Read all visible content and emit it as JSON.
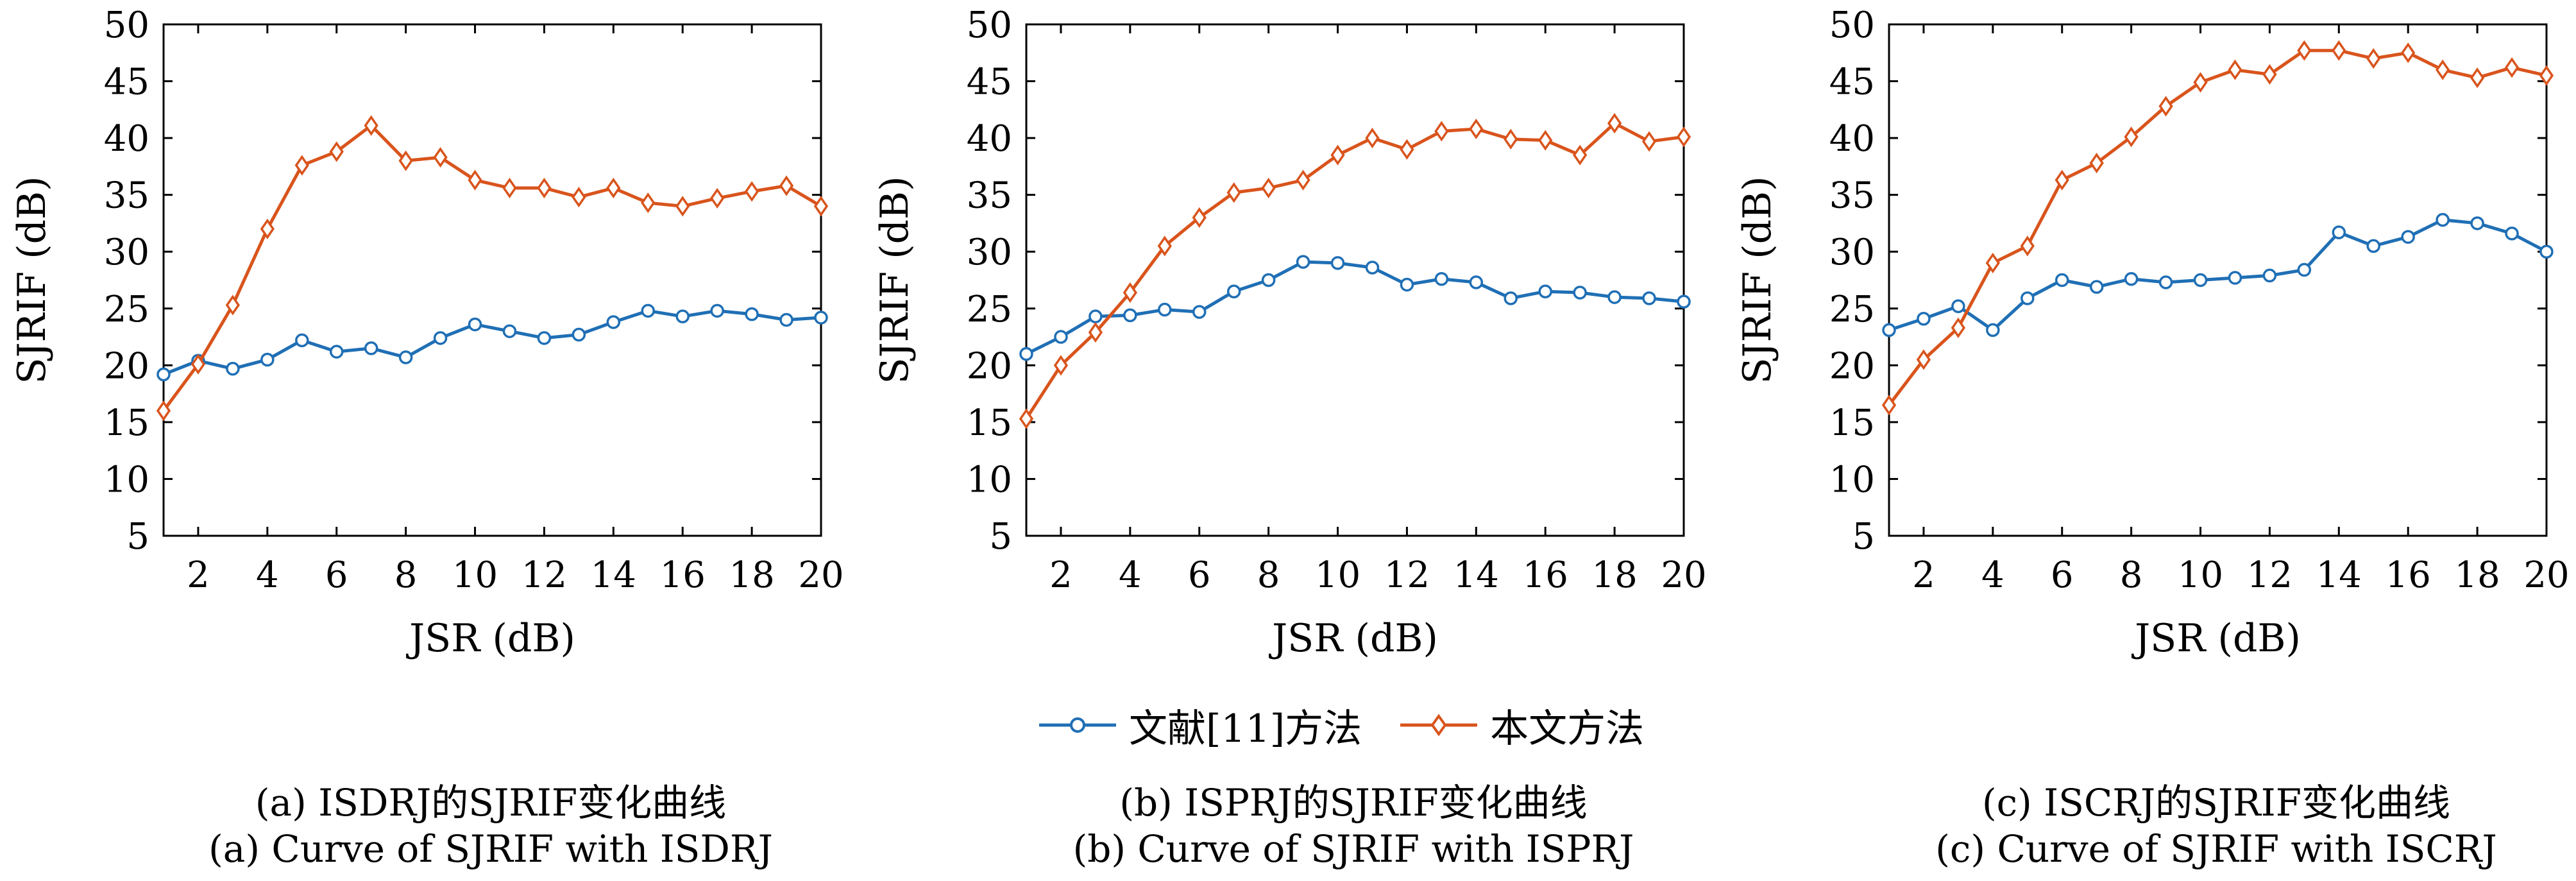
{
  "chart_data": [
    {
      "type": "line",
      "xlabel": "JSR (dB)",
      "ylabel": "SJRIF (dB)",
      "xlim": [
        1,
        20
      ],
      "ylim": [
        5,
        50
      ],
      "xticks": [
        "2",
        "4",
        "6",
        "8",
        "10",
        "12",
        "14",
        "16",
        "18",
        "20"
      ],
      "yticks": [
        "5",
        "10",
        "15",
        "20",
        "25",
        "30",
        "35",
        "40",
        "45",
        "50"
      ],
      "x": [
        1,
        2,
        3,
        4,
        5,
        6,
        7,
        8,
        9,
        10,
        11,
        12,
        13,
        14,
        15,
        16,
        17,
        18,
        19,
        20
      ],
      "series": [
        {
          "name": "文献[11]方法",
          "values": [
            19.2,
            20.4,
            19.7,
            20.5,
            22.2,
            21.2,
            21.5,
            20.7,
            22.4,
            23.6,
            23.0,
            22.4,
            22.7,
            23.8,
            24.8,
            24.3,
            24.8,
            24.5,
            24.0,
            24.2
          ]
        },
        {
          "name": "本文方法",
          "values": [
            16.0,
            20.1,
            25.3,
            32.0,
            37.6,
            38.8,
            41.1,
            38.0,
            38.3,
            36.3,
            35.6,
            35.6,
            34.8,
            35.6,
            34.3,
            34.0,
            34.7,
            35.3,
            35.8,
            34.0
          ]
        }
      ],
      "caption_cn": "(a) ISDRJ的SJRIF变化曲线",
      "caption_en": "(a) Curve of SJRIF with ISDRJ"
    },
    {
      "type": "line",
      "xlabel": "JSR (dB)",
      "ylabel": "SJRIF (dB)",
      "xlim": [
        1,
        20
      ],
      "ylim": [
        5,
        50
      ],
      "xticks": [
        "2",
        "4",
        "6",
        "8",
        "10",
        "12",
        "14",
        "16",
        "18",
        "20"
      ],
      "yticks": [
        "5",
        "10",
        "15",
        "20",
        "25",
        "30",
        "35",
        "40",
        "45",
        "50"
      ],
      "x": [
        1,
        2,
        3,
        4,
        5,
        6,
        7,
        8,
        9,
        10,
        11,
        12,
        13,
        14,
        15,
        16,
        17,
        18,
        19,
        20
      ],
      "series": [
        {
          "name": "文献[11]方法",
          "values": [
            21.0,
            22.5,
            24.3,
            24.4,
            24.9,
            24.7,
            26.5,
            27.5,
            29.1,
            29.0,
            28.6,
            27.1,
            27.6,
            27.3,
            25.9,
            26.5,
            26.4,
            26.0,
            25.9,
            25.6
          ]
        },
        {
          "name": "本文方法",
          "values": [
            15.3,
            20.0,
            22.9,
            26.4,
            30.5,
            33.0,
            35.2,
            35.6,
            36.3,
            38.5,
            40.0,
            39.0,
            40.6,
            40.8,
            39.9,
            39.8,
            38.5,
            41.3,
            39.7,
            40.1
          ]
        }
      ],
      "caption_cn": "(b) ISPRJ的SJRIF变化曲线",
      "caption_en": "(b) Curve of SJRIF with ISPRJ"
    },
    {
      "type": "line",
      "xlabel": "JSR (dB)",
      "ylabel": "SJRIF (dB)",
      "xlim": [
        1,
        20
      ],
      "ylim": [
        5,
        50
      ],
      "xticks": [
        "2",
        "4",
        "6",
        "8",
        "10",
        "12",
        "14",
        "16",
        "18",
        "20"
      ],
      "yticks": [
        "5",
        "10",
        "15",
        "20",
        "25",
        "30",
        "35",
        "40",
        "45",
        "50"
      ],
      "x": [
        1,
        2,
        3,
        4,
        5,
        6,
        7,
        8,
        9,
        10,
        11,
        12,
        13,
        14,
        15,
        16,
        17,
        18,
        19,
        20
      ],
      "series": [
        {
          "name": "文献[11]方法",
          "values": [
            23.1,
            24.1,
            25.2,
            23.1,
            25.9,
            27.5,
            26.9,
            27.6,
            27.3,
            27.5,
            27.7,
            27.9,
            28.4,
            31.7,
            30.5,
            31.3,
            32.8,
            32.5,
            31.6,
            30.0
          ]
        },
        {
          "name": "本文方法",
          "values": [
            16.5,
            20.5,
            23.3,
            29.0,
            30.5,
            36.3,
            37.8,
            40.1,
            42.8,
            44.9,
            46.0,
            45.6,
            47.7,
            47.7,
            47.0,
            47.5,
            46.0,
            45.3,
            46.2,
            45.5
          ]
        }
      ],
      "caption_cn": "(c) ISCRJ的SJRIF变化曲线",
      "caption_en": "(c) Curve of SJRIF with ISCRJ"
    }
  ],
  "legend": [
    {
      "label": "文献[11]方法",
      "color": "#1f6fb5",
      "marker": "circle"
    },
    {
      "label": "本文方法",
      "color": "#d9541c",
      "marker": "diamond"
    }
  ],
  "colors": {
    "series_blue": "#1f6fb5",
    "series_orange": "#d9541c",
    "axis": "#000000"
  }
}
